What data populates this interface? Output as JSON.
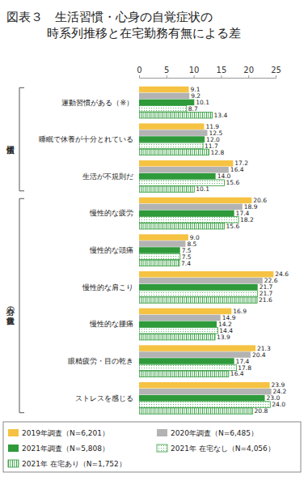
{
  "chart_data": {
    "type": "bar",
    "orientation": "horizontal",
    "title": "図表３　生活習慣・心身の自覚症状の\n時系列推移と在宅勤務有無による差",
    "categories": [
      "運動習慣がある（※）",
      "睡眠で休養が十分とれている",
      "生活が不規則だ",
      "慢性的な疲労",
      "慢性的な頭痛",
      "慢性的な肩こり",
      "慢性的な腰痛",
      "眼精疲労・目の乾き",
      "ストレスを感じる"
    ],
    "groups": [
      {
        "label": "生活習慣",
        "count": 3
      },
      {
        "label": "心身の自覚症状",
        "count": 6
      }
    ],
    "series": [
      {
        "name": "2019年調査（N=6,201）",
        "color": "#f5c242",
        "values": [
          9.1,
          11.9,
          17.2,
          20.6,
          9.0,
          24.6,
          16.9,
          21.3,
          23.9
        ],
        "value_labels": [
          "9.1",
          "11.9",
          "17.2",
          "20.6",
          "9.0",
          "24.6",
          "16.9",
          "21.3",
          "23.9"
        ]
      },
      {
        "name": "2020年調査（N=6,485）",
        "color": "#b3b3b3",
        "values": [
          9.2,
          12.5,
          16.4,
          18.9,
          8.5,
          22.6,
          14.9,
          20.4,
          24.2
        ],
        "value_labels": [
          "9.2",
          "12.5",
          "16.4",
          "18.9",
          "8.5",
          "22.6",
          "14.9",
          "20.4",
          "24.2"
        ]
      },
      {
        "name": "2021年調査（N=5,808）",
        "color": "#2e9a3a",
        "values": [
          10.1,
          12.0,
          14.0,
          17.4,
          7.5,
          21.7,
          14.2,
          17.4,
          23.0
        ],
        "value_labels": [
          "10.1",
          "12.0",
          "14.0",
          "17.4",
          "7.5",
          "21.7",
          "14.2",
          "17.4",
          "23.0"
        ]
      },
      {
        "name": "2021年 在宅なし（N=4,056）",
        "color": "#2e9a3a",
        "values": [
          8.7,
          11.7,
          15.6,
          18.2,
          7.5,
          21.7,
          14.4,
          17.8,
          24.0
        ],
        "value_labels": [
          "8.7",
          "11.7",
          "15.6",
          "18.2",
          "7.5",
          "21.7",
          "14.4",
          "17.8",
          "24.0"
        ]
      },
      {
        "name": "2021年 在宅あり（N=1,752）",
        "color": "#2e9a3a",
        "values": [
          13.4,
          12.8,
          10.1,
          15.6,
          7.4,
          21.6,
          13.9,
          16.4,
          20.8
        ],
        "value_labels": [
          "13.4",
          "12.8",
          "10.1",
          "15.6",
          "7.4",
          "21.6",
          "13.9",
          "16.4",
          "20.8"
        ]
      }
    ],
    "xlim": [
      0,
      25
    ],
    "xticks": [
      0,
      5,
      10,
      15,
      20,
      25
    ],
    "grid": false,
    "data_labels": true,
    "legend": "bottom"
  }
}
